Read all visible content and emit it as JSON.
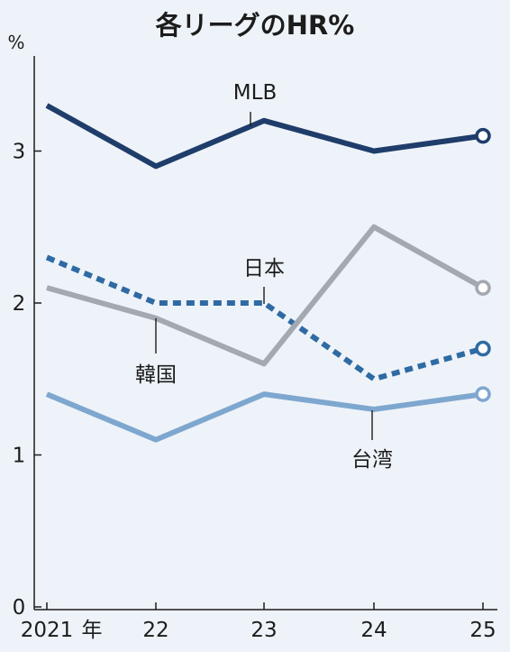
{
  "chart_data": {
    "type": "line",
    "title": "各リーグのHR%",
    "ylabel": "%",
    "xlabel": "",
    "ylim": [
      0,
      3.6
    ],
    "yticks": [
      0,
      1,
      2,
      3
    ],
    "x": [
      "2021",
      "22",
      "23",
      "24",
      "25"
    ],
    "x_first_suffix": "年",
    "grid": false,
    "series": [
      {
        "name": "MLB",
        "values": [
          3.3,
          2.9,
          3.2,
          3.0,
          3.1
        ],
        "color": "#1f3d6b",
        "dash": false
      },
      {
        "name": "日本",
        "values": [
          2.3,
          2.0,
          2.0,
          1.5,
          1.7
        ],
        "color": "#2f6aa3",
        "dash": true
      },
      {
        "name": "韓国",
        "values": [
          2.1,
          1.9,
          1.6,
          2.5,
          2.1
        ],
        "color": "#a3a8b1",
        "dash": false
      },
      {
        "name": "台湾",
        "values": [
          1.4,
          1.1,
          1.4,
          1.3,
          1.4
        ],
        "color": "#7ea7cf",
        "dash": false
      }
    ]
  }
}
